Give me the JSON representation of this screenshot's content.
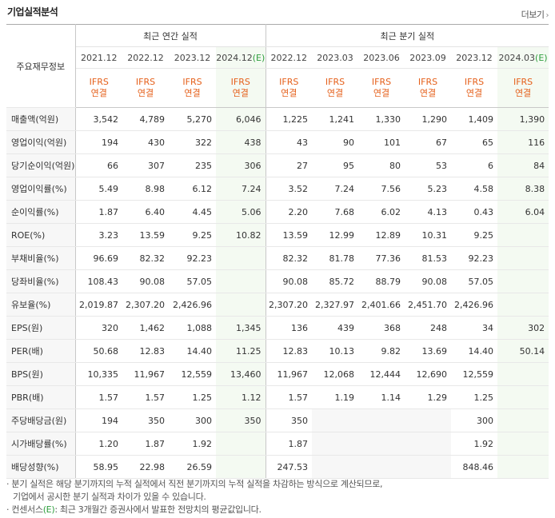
{
  "header": {
    "title": "기업실적분석",
    "more_label": "더보기",
    "more_arrow": "›"
  },
  "table": {
    "row_header_label": "주요재무정보",
    "group_annual": "최근 연간 실적",
    "group_quarter": "최근 분기 실적",
    "annual_periods": [
      "2021.12",
      "2022.12",
      "2023.12",
      "2024.12"
    ],
    "annual_est_mark": "(E)",
    "quarter_periods": [
      "2022.12",
      "2023.03",
      "2023.06",
      "2023.09",
      "2023.12",
      "2024.03"
    ],
    "quarter_est_mark": "(E)",
    "basis_top": "IFRS",
    "basis_bottom": "연결",
    "rows": [
      {
        "label": "매출액(억원)",
        "cells": [
          "3,542",
          "4,789",
          "5,270",
          "6,046",
          "1,225",
          "1,241",
          "1,330",
          "1,290",
          "1,409",
          "1,390"
        ]
      },
      {
        "label": "영업이익(억원)",
        "cells": [
          "194",
          "430",
          "322",
          "438",
          "43",
          "90",
          "101",
          "67",
          "65",
          "116"
        ]
      },
      {
        "label": "당기순이익(억원)",
        "cells": [
          "66",
          "307",
          "235",
          "306",
          "27",
          "95",
          "80",
          "53",
          "6",
          "84"
        ]
      },
      {
        "label": "영업이익률(%)",
        "cells": [
          "5.49",
          "8.98",
          "6.12",
          "7.24",
          "3.52",
          "7.24",
          "7.56",
          "5.23",
          "4.58",
          "8.38"
        ]
      },
      {
        "label": "순이익률(%)",
        "cells": [
          "1.87",
          "6.40",
          "4.45",
          "5.06",
          "2.20",
          "7.68",
          "6.02",
          "4.13",
          "0.43",
          "6.04"
        ]
      },
      {
        "label": "ROE(%)",
        "cells": [
          "3.23",
          "13.59",
          "9.25",
          "10.82",
          "13.59",
          "12.99",
          "12.89",
          "10.31",
          "9.25",
          ""
        ]
      },
      {
        "label": "부채비율(%)",
        "cells": [
          "96.69",
          "82.32",
          "92.23",
          "",
          "82.32",
          "81.78",
          "77.36",
          "81.53",
          "92.23",
          ""
        ]
      },
      {
        "label": "당좌비율(%)",
        "cells": [
          "108.43",
          "90.08",
          "57.05",
          "",
          "90.08",
          "85.72",
          "88.79",
          "90.08",
          "57.05",
          ""
        ]
      },
      {
        "label": "유보율(%)",
        "cells": [
          "2,019.87",
          "2,307.20",
          "2,426.96",
          "",
          "2,307.20",
          "2,327.97",
          "2,401.66",
          "2,451.70",
          "2,426.96",
          ""
        ]
      },
      {
        "label": "EPS(원)",
        "cells": [
          "320",
          "1,462",
          "1,088",
          "1,345",
          "136",
          "439",
          "368",
          "248",
          "34",
          "302"
        ]
      },
      {
        "label": "PER(배)",
        "cells": [
          "50.68",
          "12.83",
          "14.40",
          "11.25",
          "12.83",
          "10.13",
          "9.82",
          "13.69",
          "14.40",
          "50.14"
        ]
      },
      {
        "label": "BPS(원)",
        "cells": [
          "10,335",
          "11,967",
          "12,559",
          "13,460",
          "11,967",
          "12,068",
          "12,444",
          "12,690",
          "12,559",
          ""
        ]
      },
      {
        "label": "PBR(배)",
        "cells": [
          "1.57",
          "1.57",
          "1.25",
          "1.12",
          "1.57",
          "1.19",
          "1.14",
          "1.29",
          "1.25",
          ""
        ]
      },
      {
        "label": "주당배당금(원)",
        "cells": [
          "194",
          "350",
          "300",
          "350",
          "350",
          "",
          "",
          "",
          "300",
          ""
        ]
      },
      {
        "label": "시가배당률(%)",
        "cells": [
          "1.20",
          "1.87",
          "1.92",
          "",
          "1.87",
          "",
          "",
          "",
          "1.92",
          ""
        ]
      },
      {
        "label": "배당성향(%)",
        "cells": [
          "58.95",
          "22.98",
          "26.59",
          "",
          "247.53",
          "",
          "",
          "",
          "848.46",
          ""
        ]
      }
    ]
  },
  "notes": {
    "line1": "· 분기 실적은 해당 분기까지의 누적 실적에서 직전 분기까지의 누적 실적을 차감하는 방식으로 계산되므로,",
    "line2": "기업에서 공시한 분기 실적과 차이가 있을 수 있습니다.",
    "line3_a": "· 컨센서스",
    "line3_e": "(E)",
    "line3_b": ": 최근 3개월간 증권사에서 발표한 전망치의 평균값입니다."
  }
}
